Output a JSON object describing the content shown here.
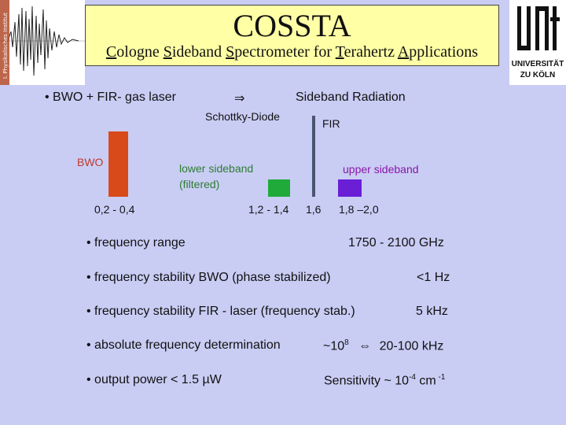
{
  "header": {
    "title": "COSSTA",
    "subtitle_parts": [
      {
        "u": "C",
        "rest": "ologne "
      },
      {
        "u": "S",
        "rest": "ideband "
      },
      {
        "u": "S",
        "rest": "pectrometer for "
      },
      {
        "u": "T",
        "rest": "erahertz "
      },
      {
        "u": "A",
        "rest": "pplications"
      }
    ],
    "logo_left_text": "I. Physikalisches Institut",
    "logo_right_line1": "UNIVERSITÄT",
    "logo_right_line2": "ZU KÖLN"
  },
  "diagram": {
    "bwo_fir_label": "• BWO + FIR- gas laser",
    "arrow": "⇒",
    "sideband_radiation": "Sideband Radiation",
    "schottky": "Schottky-Diode",
    "fir": "FIR",
    "bwo": "BWO",
    "lower_sideband_1": "lower sideband",
    "lower_sideband_2": "(filtered)",
    "upper_sideband": "upper sideband",
    "range_bwo": "0,2 - 0,4",
    "range_lower": "1,2 - 1,4",
    "range_fir": "1,6",
    "range_upper": "1,8 –2,0",
    "colors": {
      "bwo_bar": "#d94a1a",
      "lower_bar": "#1faa3a",
      "upper_bar": "#6a1fd6",
      "fir_line": "#4a5570"
    }
  },
  "specs": {
    "freq_range_label": "• frequency range",
    "freq_range_value": "1750 - 2100 GHz",
    "bwo_stab_label": "• frequency stability BWO (phase stabilized)",
    "bwo_stab_value": "<1 Hz",
    "fir_stab_label": "• frequency stability FIR - laser (frequency stab.)",
    "fir_stab_value": "5 kHz",
    "abs_freq_label": "• absolute frequency determination",
    "abs_freq_prefix": "~10",
    "abs_freq_exp": "8",
    "abs_freq_arrow": "⇔",
    "abs_freq_value": "20-100 kHz",
    "power_label_pre": "• output power < 1.5 ",
    "power_unit": "µW",
    "sens_pre": "Sensitivity ~ 10",
    "sens_exp1": "-4",
    "sens_mid": " cm",
    "sens_exp2": " -1"
  }
}
